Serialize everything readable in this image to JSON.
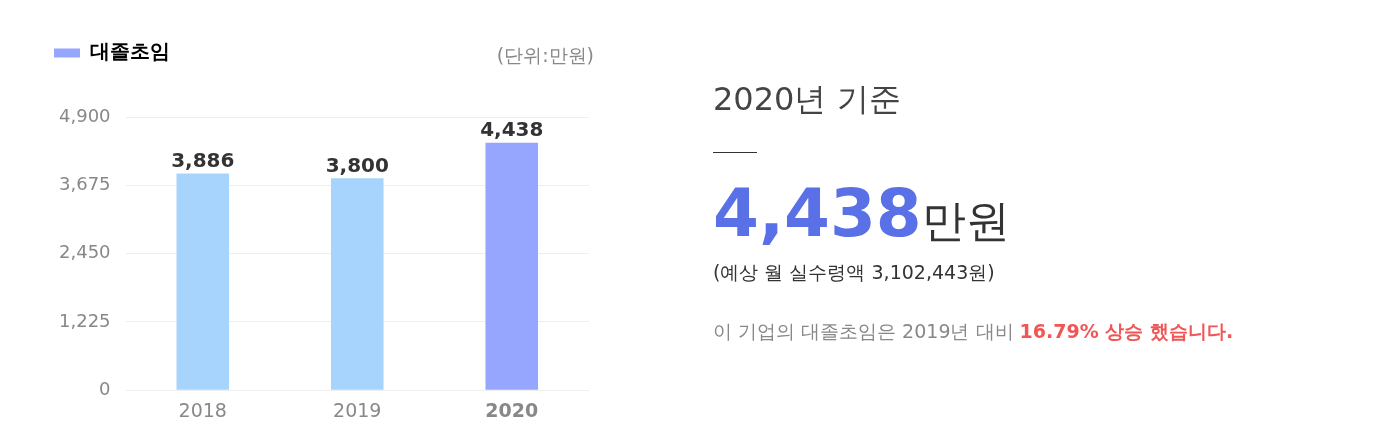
{
  "chart_data": [
    {
      "type": "bar",
      "categories": [
        "2018",
        "2019",
        "2020"
      ],
      "series": [
        {
          "name": "대졸초임",
          "color": "#96a6fe",
          "colors": [
            "#a6d4fd",
            "#a6d4fd",
            "#96a6fe"
          ],
          "values": [
            3886,
            3800,
            4438
          ],
          "value_labels": [
            "3,886",
            "3,800",
            "4,438"
          ]
        }
      ],
      "ylim": [
        0,
        4900
      ],
      "yticks": [
        0,
        {
          "value": 1225,
          "label": "1,225"
        },
        {
          "value": 2450,
          "label": "2,450"
        },
        {
          "value": 3675,
          "label": "3,675"
        },
        {
          "value": 4900,
          "label": "4,900"
        }
      ],
      "grid": "y",
      "legend": "top left",
      "annotations": [
        "(단위:만원)"
      ]
    },
    {
      "type": "other",
      "title": "2020년 기준",
      "annotations": [
        "4,438만원",
        "(예상 월 실수령액 3,102,443원)",
        "이 기업의 대졸초임은 2019년 대비",
        "16.79% 상승 했습니다."
      ]
    }
  ]
}
